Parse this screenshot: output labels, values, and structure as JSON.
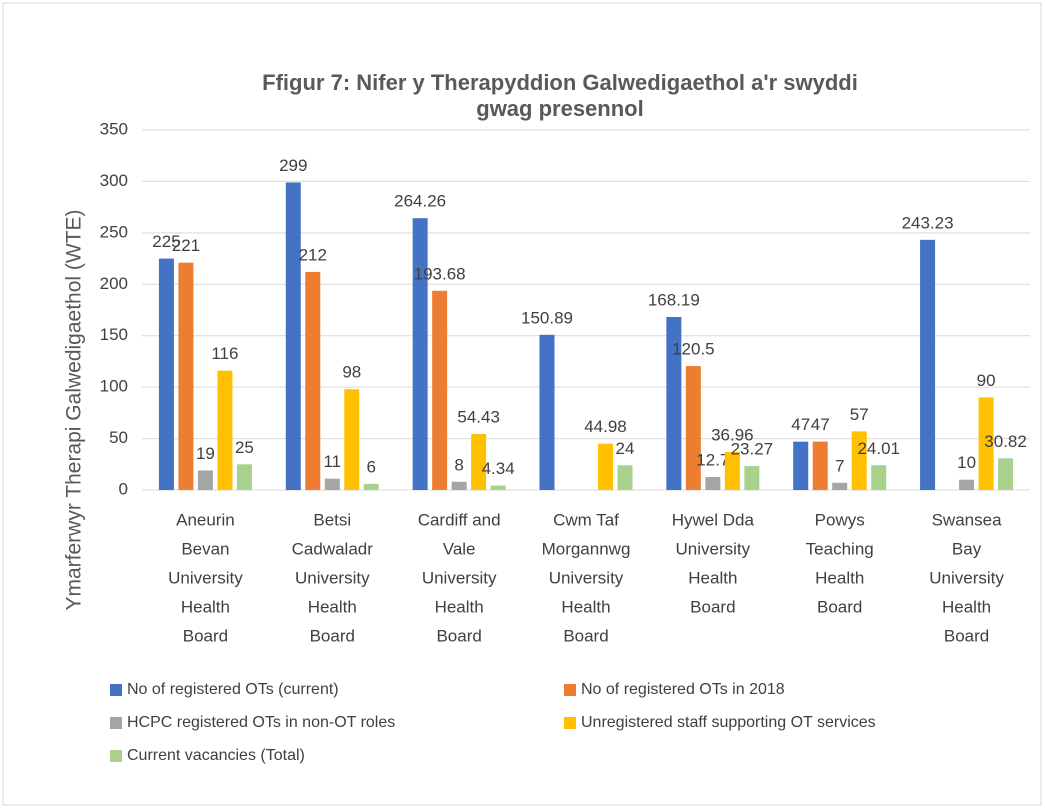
{
  "chart_data": {
    "type": "bar",
    "title": "Ffigur 7: Nifer y Therapyddion Galwedigaethol a'r swyddi gwag presennol",
    "y_label": "Ymarferwyr Therapi Galwedigaethol (WTE)",
    "categories": [
      [
        "Aneurin",
        "Bevan",
        "University",
        "Health",
        "Board"
      ],
      [
        "Betsi",
        "Cadwaladr",
        "University",
        "Health",
        "Board"
      ],
      [
        "Cardiff and",
        "Vale",
        "University",
        "Health",
        "Board"
      ],
      [
        "Cwm Taf",
        "Morgannwg",
        "University",
        "Health",
        "Board"
      ],
      [
        "Hywel Dda",
        "University",
        "Health",
        "Board"
      ],
      [
        "Powys",
        "Teaching",
        "Health",
        "Board"
      ],
      [
        "Swansea",
        "Bay",
        "University",
        "Health",
        "Board"
      ]
    ],
    "series": [
      {
        "name": "No of registered OTs (current)",
        "color": "#4472c4",
        "values": [
          225,
          299,
          264.26,
          150.89,
          168.19,
          47,
          243.23
        ]
      },
      {
        "name": "No of registered OTs in 2018",
        "color": "#ed7d31",
        "values": [
          221,
          212,
          193.68,
          null,
          120.5,
          47,
          null
        ]
      },
      {
        "name": "HCPC registered OTs in non-OT roles",
        "color": "#a5a5a5",
        "values": [
          19,
          11,
          8,
          null,
          12.7,
          7,
          10
        ]
      },
      {
        "name": "Unregistered staff supporting OT services",
        "color": "#ffc000",
        "values": [
          116,
          98,
          54.43,
          44.98,
          36.96,
          57,
          90
        ]
      },
      {
        "name": "Current vacancies (Total)",
        "color": "#a9d18e",
        "values": [
          25,
          6,
          4.34,
          24,
          23.27,
          24.01,
          30.82
        ]
      }
    ],
    "ylim": [
      0,
      350
    ],
    "yticks": [
      0,
      50,
      100,
      150,
      200,
      250,
      300,
      350
    ],
    "grid": true,
    "legend": "bottom"
  }
}
